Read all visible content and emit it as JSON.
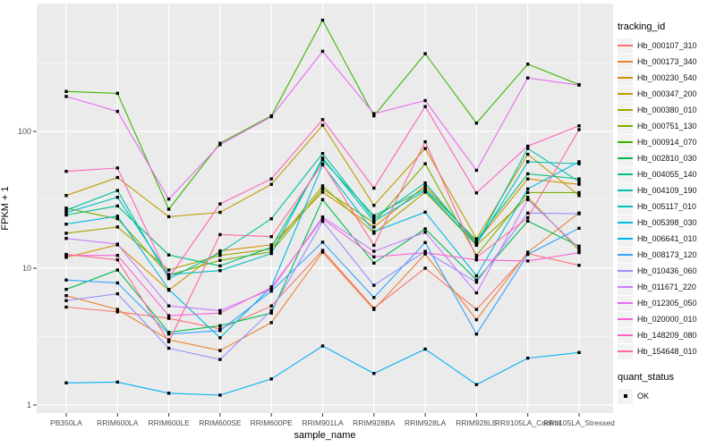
{
  "chart_data": {
    "type": "line",
    "title": "",
    "xlabel": "sample_name",
    "ylabel": "FPKM + 1",
    "yscale": "log10",
    "yticks": [
      1,
      10,
      100
    ],
    "ytick_labels": [
      "1",
      "10",
      "100"
    ],
    "ylim": [
      1.05,
      900
    ],
    "grid": "white-on-grey-panel",
    "legend_position": "right",
    "marker": "black-square",
    "categories": [
      "PB350LA",
      "RRIM600LA",
      "RRIM600LE",
      "RRIM600SE",
      "RRIM600PE",
      "RRIM901LA",
      "RRIM928BA",
      "RRIM928LA",
      "RRIM928LE",
      "RRII105LA_Control",
      "RRII105LA_Stressed"
    ],
    "series": [
      {
        "name": "Hb_000107_310",
        "color": "#F8766D",
        "values": [
          5.2,
          4.8,
          4.3,
          3.6,
          5.3,
          13.5,
          5.1,
          10.0,
          5.0,
          12.8,
          10.5
        ]
      },
      {
        "name": "Hb_000173_340",
        "color": "#EA8331",
        "values": [
          6.3,
          5.0,
          3.0,
          2.5,
          4.0,
          13.1,
          5.0,
          12.7,
          4.2,
          13.1,
          25.3
        ]
      },
      {
        "name": "Hb_000230_540",
        "color": "#D89000",
        "values": [
          12.0,
          14.8,
          6.9,
          13.4,
          14.8,
          36,
          20,
          40,
          15.5,
          45,
          41
        ]
      },
      {
        "name": "Hb_000347_200",
        "color": "#C09B00",
        "values": [
          34,
          46,
          23.8,
          25.6,
          41,
          111,
          28.8,
          75,
          16.4,
          68,
          34
        ]
      },
      {
        "name": "Hb_000380_010",
        "color": "#A3A500",
        "values": [
          18,
          20,
          9.7,
          12.4,
          13.8,
          40,
          18,
          36,
          14.7,
          33,
          13.5
        ]
      },
      {
        "name": "Hb_000751_130",
        "color": "#7CAE00",
        "values": [
          27.5,
          23,
          8.9,
          11.4,
          13.2,
          38,
          21.5,
          58,
          12.4,
          35.7,
          35.7
        ]
      },
      {
        "name": "Hb_000914_070",
        "color": "#39B600",
        "values": [
          196,
          190,
          27,
          82,
          130,
          650,
          130,
          370,
          115,
          310,
          220
        ]
      },
      {
        "name": "Hb_002810_030",
        "color": "#00BB4E",
        "values": [
          7.0,
          9.7,
          3.4,
          3.8,
          4.7,
          31.7,
          10.9,
          19.4,
          8.2,
          22.1,
          14.5
        ]
      },
      {
        "name": "Hb_004055_140",
        "color": "#00BF7D",
        "values": [
          24.5,
          28.5,
          12.5,
          10.4,
          14.2,
          62,
          24.2,
          38,
          16.0,
          49,
          45
        ]
      },
      {
        "name": "Hb_004109_190",
        "color": "#00C1A3",
        "values": [
          26.5,
          37,
          8.4,
          13.0,
          23,
          69,
          23,
          42,
          15.0,
          75,
          43
        ]
      },
      {
        "name": "Hb_005117_010",
        "color": "#00BFC4",
        "values": [
          25.5,
          33,
          9.0,
          9.6,
          12.8,
          64,
          22,
          37,
          14.9,
          60,
          58
        ]
      },
      {
        "name": "Hb_005398_030",
        "color": "#00BAE0",
        "values": [
          21,
          24,
          7.0,
          3.1,
          7.3,
          57,
          18.5,
          25.7,
          8.8,
          38,
          60
        ]
      },
      {
        "name": "Hb_006641_010",
        "color": "#00B0F6",
        "values": [
          1.45,
          1.47,
          1.22,
          1.18,
          1.55,
          2.7,
          1.7,
          2.56,
          1.41,
          2.2,
          2.42
        ]
      },
      {
        "name": "Hb_008173_120",
        "color": "#35A2FF",
        "values": [
          8.2,
          7.8,
          3.3,
          3.5,
          6.8,
          15.5,
          6.1,
          15.4,
          3.3,
          12.6,
          19.6
        ]
      },
      {
        "name": "Hb_010436_060",
        "color": "#9590FF",
        "values": [
          5.8,
          6.5,
          2.6,
          2.15,
          4.9,
          22,
          7.5,
          13.3,
          7.9,
          25.3,
          25.0
        ]
      },
      {
        "name": "Hb_011671_220",
        "color": "#C77CFF",
        "values": [
          16.5,
          15,
          5.3,
          4.9,
          7.0,
          23.7,
          13.3,
          18.3,
          6.6,
          31.7,
          14.0
        ]
      },
      {
        "name": "Hb_012305_050",
        "color": "#E76BF3",
        "values": [
          180,
          140,
          32,
          80,
          128,
          385,
          135,
          168,
          52,
          246,
          218
        ]
      },
      {
        "name": "Hb_020000_010",
        "color": "#FA62DB",
        "values": [
          12.4,
          12.4,
          4.5,
          4.7,
          7.2,
          23,
          12.1,
          13.0,
          11.5,
          11.3,
          13.0
        ]
      },
      {
        "name": "Hb_148209_080",
        "color": "#FF62BC",
        "values": [
          51,
          54,
          8.5,
          29.5,
          45,
          122,
          38.5,
          152,
          35.5,
          78,
          110
        ]
      },
      {
        "name": "Hb_154648_010",
        "color": "#FF6A98",
        "values": [
          12.6,
          11.5,
          2.9,
          17.6,
          17,
          58,
          14.7,
          84,
          12.0,
          23.4,
          103
        ]
      }
    ]
  },
  "axes": {
    "x_label": "sample_name",
    "y_label": "FPKM + 1"
  },
  "legend": {
    "tracking_title": "tracking_id",
    "quant_title": "quant_status",
    "quant_value": "OK",
    "quant_marker": "black-square-icon"
  },
  "colors": {
    "panel_bg": "#EBEBEB",
    "grid": "#FFFFFF",
    "tick_text": "#4D4D4D",
    "tick_mark": "#333333",
    "legend_key_bg": "#F2F2F2",
    "point_marker": "#000000"
  }
}
